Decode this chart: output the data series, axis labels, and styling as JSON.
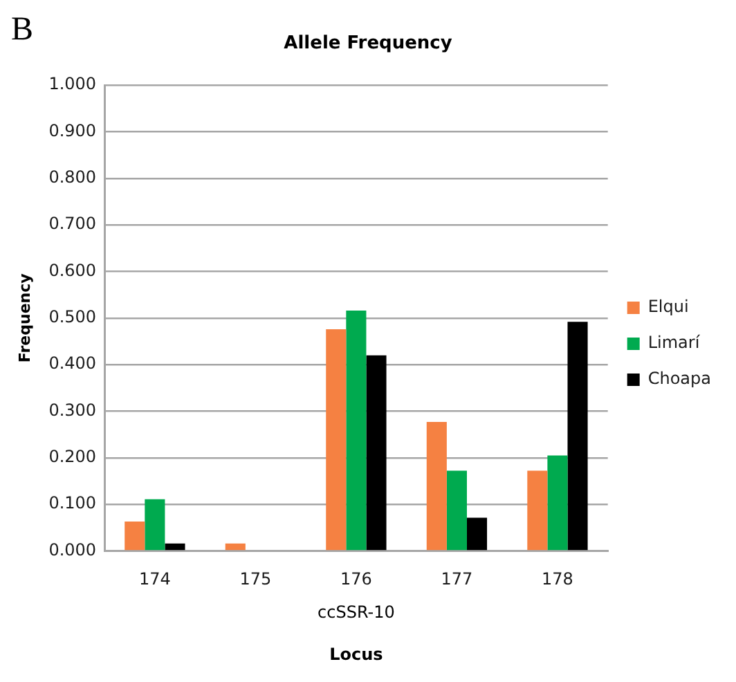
{
  "chart_data": {
    "type": "bar",
    "title": "Allele Frequency",
    "xlabel": "Locus",
    "ylabel": "Frequency",
    "annotations": [
      "B",
      "ccSSR-10"
    ],
    "categories": [
      "174",
      "175",
      "176",
      "177",
      "178"
    ],
    "series": [
      {
        "name": "Elqui",
        "color": "#f58142",
        "values": [
          0.063,
          0.016,
          0.476,
          0.277,
          0.172
        ]
      },
      {
        "name": "Limarí",
        "color": "#00aa4f",
        "values": [
          0.111,
          0,
          0.516,
          0.172,
          0.205
        ]
      },
      {
        "name": "Choapa",
        "color": "#000000",
        "values": [
          0.016,
          0,
          0.42,
          0.071,
          0.492
        ]
      }
    ],
    "ylim": [
      0,
      1
    ],
    "yticks": [
      {
        "value": 0,
        "label": "0.000"
      },
      {
        "value": 0.1,
        "label": "0.100"
      },
      {
        "value": 0.2,
        "label": "0.200"
      },
      {
        "value": 0.3,
        "label": "0.300"
      },
      {
        "value": 0.4,
        "label": "0.400"
      },
      {
        "value": 0.5,
        "label": "0.500"
      },
      {
        "value": 0.6,
        "label": "0.600"
      },
      {
        "value": 0.7,
        "label": "0.700"
      },
      {
        "value": 0.8,
        "label": "0.800"
      },
      {
        "value": 0.9,
        "label": "0.900"
      },
      {
        "value": 1,
        "label": "1.000"
      }
    ],
    "grid": "y",
    "legend": "right"
  }
}
